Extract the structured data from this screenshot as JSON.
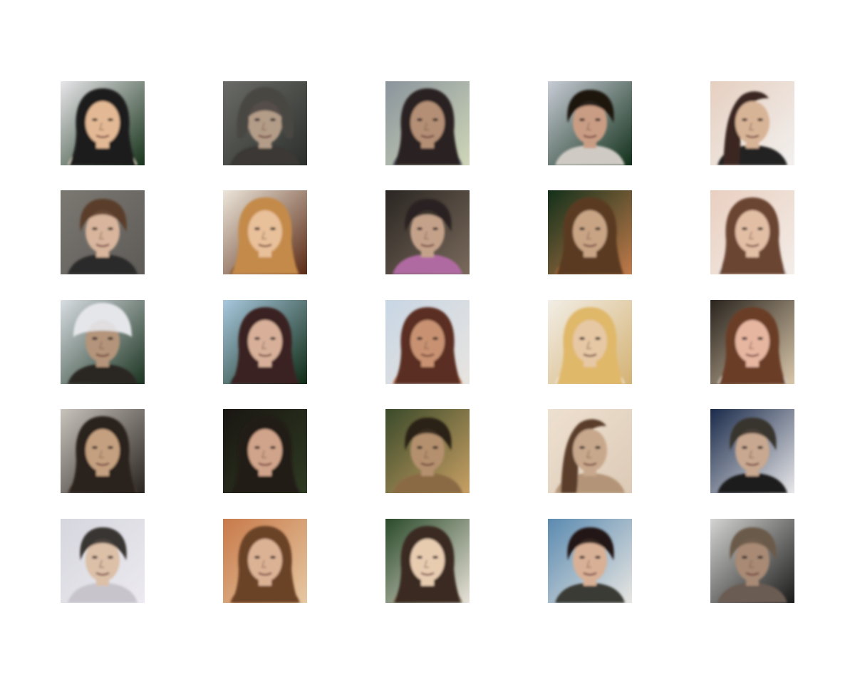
{
  "figure": {
    "background": "#ffffff",
    "rows": 5,
    "cols": 5
  },
  "tiles": [
    {
      "bg": [
        "#e8e6ea",
        "#17331a"
      ],
      "hair": "#1e1a1c",
      "skin": "#e3b995",
      "shirt": "#e7dccb",
      "hairStyle": "long"
    },
    {
      "bg": [
        "#6a6b66",
        "#2c2f2c"
      ],
      "hair": "#4a4642",
      "skin": "#b39c88",
      "shirt": "#3a3835",
      "hairStyle": "bob"
    },
    {
      "bg": [
        "#8a949c",
        "#cfd6b8"
      ],
      "hair": "#2a2422",
      "skin": "#b48f76",
      "shirt": "#58616a",
      "hairStyle": "long"
    },
    {
      "bg": [
        "#c8ccd6",
        "#12301a"
      ],
      "hair": "#1b1512",
      "skin": "#c99d84",
      "shirt": "#cfcac4",
      "hairStyle": "short"
    },
    {
      "bg": [
        "#e6cfc0",
        "#f2f0ee"
      ],
      "hair": "#3a2820",
      "skin": "#d8b497",
      "shirt": "#202020",
      "hairStyle": "side"
    },
    {
      "bg": [
        "#7b7872",
        "#5e5b57"
      ],
      "hair": "#5a3e2a",
      "skin": "#d8b59c",
      "shirt": "#2a2a2a",
      "hairStyle": "short"
    },
    {
      "bg": [
        "#ece6da",
        "#5a2a14"
      ],
      "hair": "#c48a4a",
      "skin": "#e8c09a",
      "shirt": "#7a4a2a",
      "hairStyle": "long"
    },
    {
      "bg": [
        "#2a2622",
        "#7a6a5c"
      ],
      "hair": "#2a2420",
      "skin": "#c4a28a",
      "shirt": "#b06aa2",
      "hairStyle": "short"
    },
    {
      "bg": [
        "#12301a",
        "#c07a4a"
      ],
      "hair": "#5a3a22",
      "skin": "#c8a484",
      "shirt": "#a86a3a",
      "hairStyle": "long"
    },
    {
      "bg": [
        "#e9cfc0",
        "#f3ede8"
      ],
      "hair": "#6a4430",
      "skin": "#e2bea4",
      "shirt": "#f0e6e0",
      "hairStyle": "long"
    },
    {
      "bg": [
        "#d8dde2",
        "#1b3320"
      ],
      "hair": "#e4e6ea",
      "skin": "#b4947a",
      "shirt": "#2a2624",
      "hairStyle": "cap"
    },
    {
      "bg": [
        "#a8c8de",
        "#0f2a14"
      ],
      "hair": "#3a2420",
      "skin": "#d8b09a",
      "shirt": "#2a2a28",
      "hairStyle": "long"
    },
    {
      "bg": [
        "#c8d6e4",
        "#e8e4e0"
      ],
      "hair": "#5a2e20",
      "skin": "#c89272",
      "shirt": "#c07a5a",
      "hairStyle": "long"
    },
    {
      "bg": [
        "#f2eee6",
        "#d4b274"
      ],
      "hair": "#e0b86a",
      "skin": "#e6c8a4",
      "shirt": "#f4efe6",
      "hairStyle": "long"
    },
    {
      "bg": [
        "#2a241e",
        "#d8c6aa"
      ],
      "hair": "#6a3e26",
      "skin": "#e6b6a0",
      "shirt": "#e2d6c8",
      "hairStyle": "long"
    },
    {
      "bg": [
        "#c8c4bc",
        "#2a2420"
      ],
      "hair": "#2a201a",
      "skin": "#c4a080",
      "shirt": "#4a3a2e",
      "hairStyle": "long"
    },
    {
      "bg": [
        "#1a1612",
        "#2e3a22"
      ],
      "hair": "#221a16",
      "skin": "#d0a48a",
      "shirt": "#2a2220",
      "hairStyle": "long"
    },
    {
      "bg": [
        "#3a4a2a",
        "#c8a064"
      ],
      "hair": "#2a2218",
      "skin": "#b4906e",
      "shirt": "#8a6a44",
      "hairStyle": "short"
    },
    {
      "bg": [
        "#eee0d0",
        "#dccab6"
      ],
      "hair": "#5a3e2c",
      "skin": "#c8a88c",
      "shirt": "#b49478",
      "hairStyle": "side"
    },
    {
      "bg": [
        "#1a2a4a",
        "#e8e8ea"
      ],
      "hair": "#3a342e",
      "skin": "#c8a890",
      "shirt": "#1a1a1c",
      "hairStyle": "short"
    },
    {
      "bg": [
        "#d6d6de",
        "#eceaf0"
      ],
      "hair": "#3a3432",
      "skin": "#dcc0a8",
      "shirt": "#c8c4cc",
      "hairStyle": "short"
    },
    {
      "bg": [
        "#c87a4a",
        "#e6c8a2"
      ],
      "hair": "#6a4226",
      "skin": "#dcb294",
      "shirt": "#7a4a2a",
      "hairStyle": "long"
    },
    {
      "bg": [
        "#2a4a2a",
        "#e8e2d8"
      ],
      "hair": "#3a2a22",
      "skin": "#e8ccb0",
      "shirt": "#8a7a62",
      "hairStyle": "long"
    },
    {
      "bg": [
        "#5a8ab0",
        "#e8e6e2"
      ],
      "hair": "#221a16",
      "skin": "#d8b096",
      "shirt": "#3a3a36",
      "hairStyle": "short"
    },
    {
      "bg": [
        "#d4d4d2",
        "#1a1a18"
      ],
      "hair": "#6a5a4a",
      "skin": "#a88a74",
      "shirt": "#6a5c52",
      "hairStyle": "short"
    }
  ]
}
